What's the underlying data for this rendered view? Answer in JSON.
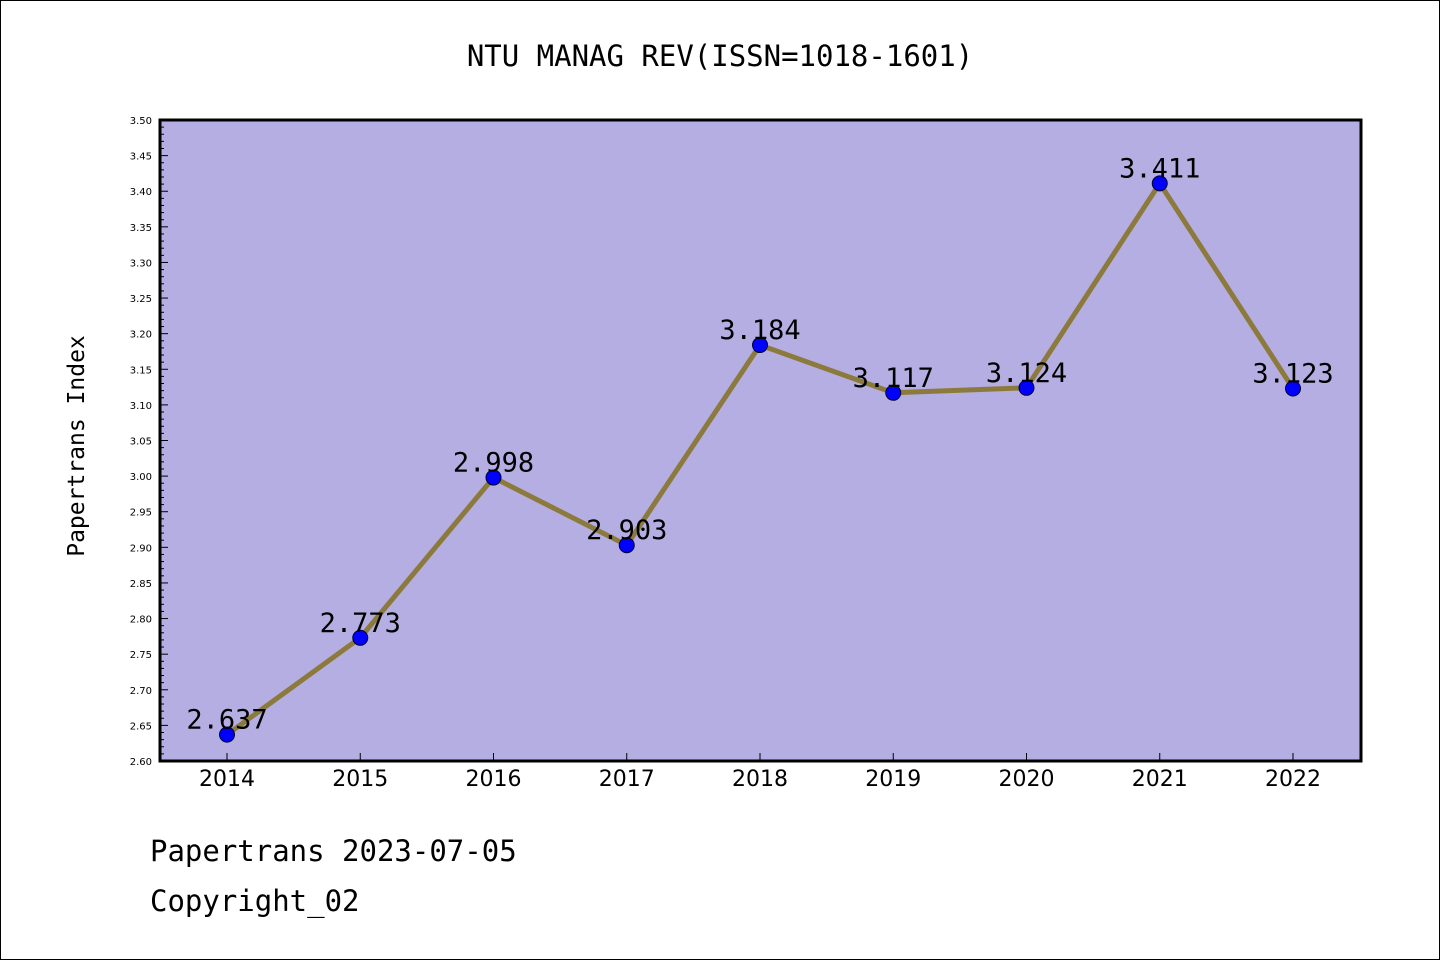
{
  "chart_data": {
    "type": "line",
    "title": "NTU MANAG REV(ISSN=1018-1601)",
    "xlabel": "",
    "ylabel": "Papertrans Index",
    "categories": [
      "2014",
      "2015",
      "2016",
      "2017",
      "2018",
      "2019",
      "2020",
      "2021",
      "2022"
    ],
    "series": [
      {
        "values": [
          2.637,
          2.773,
          2.998,
          2.903,
          3.184,
          3.117,
          3.124,
          3.411,
          3.123
        ]
      }
    ],
    "data_labels": [
      "2.637",
      "2.773",
      "2.998",
      "2.903",
      "3.184",
      "3.117",
      "3.124",
      "3.411",
      "3.123"
    ],
    "ylim": [
      2.6,
      3.5
    ],
    "y_ticks": [
      "2.60",
      "2.65",
      "2.70",
      "2.75",
      "2.80",
      "2.85",
      "2.90",
      "2.95",
      "3.00",
      "3.05",
      "3.10",
      "3.15",
      "3.20",
      "3.25",
      "3.30",
      "3.35",
      "3.40",
      "3.45",
      "3.50"
    ],
    "grid": false,
    "colors": {
      "plot_bg": "#b5aee2",
      "line": "#8c7a3c",
      "marker": "#0000ff"
    }
  },
  "footer": {
    "line1": "Papertrans 2023-07-05",
    "line2": "Copyright_02"
  }
}
